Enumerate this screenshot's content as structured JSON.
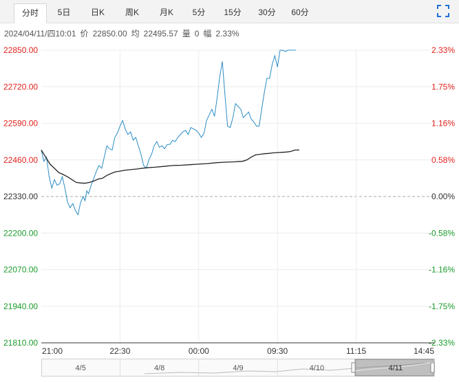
{
  "tabs": [
    {
      "label": "分时",
      "active": true
    },
    {
      "label": "5日",
      "active": false
    },
    {
      "label": "日K",
      "active": false
    },
    {
      "label": "周K",
      "active": false
    },
    {
      "label": "月K",
      "active": false
    },
    {
      "label": "5分",
      "active": false
    },
    {
      "label": "15分",
      "active": false
    },
    {
      "label": "30分",
      "active": false
    },
    {
      "label": "60分",
      "active": false
    }
  ],
  "fullscreen_icon": "expand-icon",
  "info": {
    "datetime": "2024/04/11/四10:01",
    "price_label": "价",
    "price": "22850.00",
    "avg_label": "均",
    "avg": "22495.57",
    "vol_label": "量",
    "vol": "0",
    "amp_label": "幅",
    "amp": "2.33%"
  },
  "colors": {
    "price_line": "#2a8cc5",
    "avg_line": "#222222",
    "up": "#e0211c",
    "down": "#1a9b2b",
    "neutral": "#333333",
    "grid": "#ececec",
    "baseline": "#aaaaaa"
  },
  "chart_data": {
    "type": "line",
    "title": "",
    "xlabel": "",
    "ylabel": "",
    "base": 22330,
    "ylim": [
      21810,
      22850
    ],
    "y_ticks_left": [
      "22850.00",
      "22720.00",
      "22590.00",
      "22460.00",
      "22330.00",
      "22200.00",
      "22070.00",
      "21940.00",
      "21810.00"
    ],
    "y_ticks_right": [
      "2.33%",
      "1.75%",
      "1.16%",
      "0.58%",
      "0.00%",
      "-0.58%",
      "-1.16%",
      "-1.75%",
      "-2.33%"
    ],
    "x_ticks": [
      "21:00",
      "22:30",
      "00:00",
      "09:30",
      "11:15",
      "14:45"
    ],
    "x_tick_pos": [
      0,
      90,
      180,
      270,
      360,
      450
    ],
    "x_total": 450,
    "series": [
      {
        "key": "price",
        "x": [
          0,
          3,
          6,
          9,
          12,
          15,
          18,
          21,
          24,
          27,
          30,
          33,
          36,
          39,
          42,
          45,
          48,
          50,
          52,
          54,
          57,
          60,
          63,
          66,
          69,
          72,
          75,
          78,
          81,
          84,
          87,
          90,
          93,
          96,
          99,
          102,
          105,
          108,
          111,
          114,
          117,
          120,
          123,
          126,
          129,
          132,
          135,
          138,
          141,
          144,
          147,
          150,
          153,
          156,
          159,
          162,
          165,
          168,
          171,
          174,
          177,
          180,
          183,
          186,
          189,
          192,
          195,
          198,
          201,
          204,
          207,
          210,
          213,
          216,
          219,
          222,
          225,
          228,
          231,
          234,
          237,
          240,
          243,
          246,
          249,
          252,
          255,
          258,
          261,
          264,
          267,
          270,
          273,
          276,
          279,
          282,
          285,
          288,
          291
        ],
        "values": [
          22495,
          22455,
          22470,
          22400,
          22360,
          22390,
          22370,
          22375,
          22400,
          22360,
          22310,
          22290,
          22305,
          22280,
          22265,
          22310,
          22330,
          22315,
          22350,
          22340,
          22370,
          22395,
          22420,
          22440,
          22430,
          22470,
          22510,
          22500,
          22495,
          22540,
          22555,
          22580,
          22600,
          22570,
          22550,
          22560,
          22530,
          22540,
          22510,
          22480,
          22440,
          22430,
          22460,
          22480,
          22510,
          22525,
          22505,
          22510,
          22500,
          22515,
          22515,
          22530,
          22525,
          22540,
          22550,
          22560,
          22565,
          22550,
          22575,
          22570,
          22565,
          22555,
          22540,
          22555,
          22600,
          22620,
          22640,
          22615,
          22680,
          22755,
          22810,
          22690,
          22580,
          22575,
          22610,
          22660,
          22650,
          22640,
          22610,
          22620,
          22630,
          22605,
          22595,
          22580,
          22580,
          22640,
          22700,
          22750,
          22750,
          22800,
          22830,
          22790,
          22850,
          22850,
          22845,
          22850,
          22850,
          22850,
          22850
        ]
      },
      {
        "key": "average",
        "x": [
          0,
          5,
          10,
          15,
          20,
          25,
          30,
          35,
          40,
          45,
          50,
          55,
          60,
          65,
          70,
          75,
          80,
          85,
          90,
          95,
          100,
          110,
          120,
          130,
          140,
          150,
          160,
          170,
          180,
          190,
          200,
          210,
          220,
          230,
          235,
          240,
          245,
          250,
          255,
          260,
          265,
          270,
          275,
          280,
          285,
          290,
          295
        ],
        "values": [
          22495,
          22470,
          22445,
          22430,
          22415,
          22408,
          22400,
          22390,
          22380,
          22378,
          22377,
          22380,
          22385,
          22392,
          22395,
          22405,
          22412,
          22418,
          22420,
          22423,
          22425,
          22428,
          22432,
          22434,
          22437,
          22440,
          22441,
          22443,
          22445,
          22447,
          22450,
          22452,
          22453,
          22455,
          22460,
          22470,
          22478,
          22480,
          22482,
          22483,
          22485,
          22486,
          22487,
          22488,
          22490,
          22495,
          22495
        ]
      }
    ]
  },
  "navigator": {
    "labels": [
      "4/5",
      "4/8",
      "4/9",
      "4/10",
      "4/11"
    ]
  }
}
